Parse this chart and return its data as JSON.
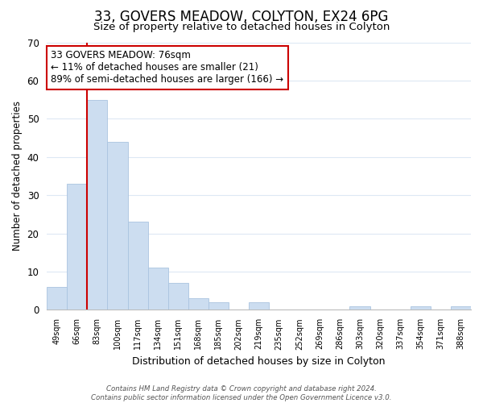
{
  "title": "33, GOVERS MEADOW, COLYTON, EX24 6PG",
  "subtitle": "Size of property relative to detached houses in Colyton",
  "xlabel": "Distribution of detached houses by size in Colyton",
  "ylabel": "Number of detached properties",
  "bar_labels": [
    "49sqm",
    "66sqm",
    "83sqm",
    "100sqm",
    "117sqm",
    "134sqm",
    "151sqm",
    "168sqm",
    "185sqm",
    "202sqm",
    "219sqm",
    "235sqm",
    "252sqm",
    "269sqm",
    "286sqm",
    "303sqm",
    "320sqm",
    "337sqm",
    "354sqm",
    "371sqm",
    "388sqm"
  ],
  "bar_values": [
    6,
    33,
    55,
    44,
    23,
    11,
    7,
    3,
    2,
    0,
    2,
    0,
    0,
    0,
    0,
    1,
    0,
    0,
    1,
    0,
    1
  ],
  "bar_color": "#ccddf0",
  "bar_edge_color": "#aac4e0",
  "ylim": [
    0,
    70
  ],
  "yticks": [
    0,
    10,
    20,
    30,
    40,
    50,
    60,
    70
  ],
  "property_line_x": 1.5,
  "property_line_color": "#cc0000",
  "annotation_line1": "33 GOVERS MEADOW: 76sqm",
  "annotation_line2": "← 11% of detached houses are smaller (21)",
  "annotation_line3": "89% of semi-detached houses are larger (166) →",
  "annotation_box_color": "#ffffff",
  "annotation_box_edge": "#cc0000",
  "footer_line1": "Contains HM Land Registry data © Crown copyright and database right 2024.",
  "footer_line2": "Contains public sector information licensed under the Open Government Licence v3.0.",
  "background_color": "#ffffff",
  "grid_color": "#dde8f4",
  "title_fontsize": 12,
  "subtitle_fontsize": 9.5,
  "ylabel_fontsize": 8.5,
  "xlabel_fontsize": 9
}
